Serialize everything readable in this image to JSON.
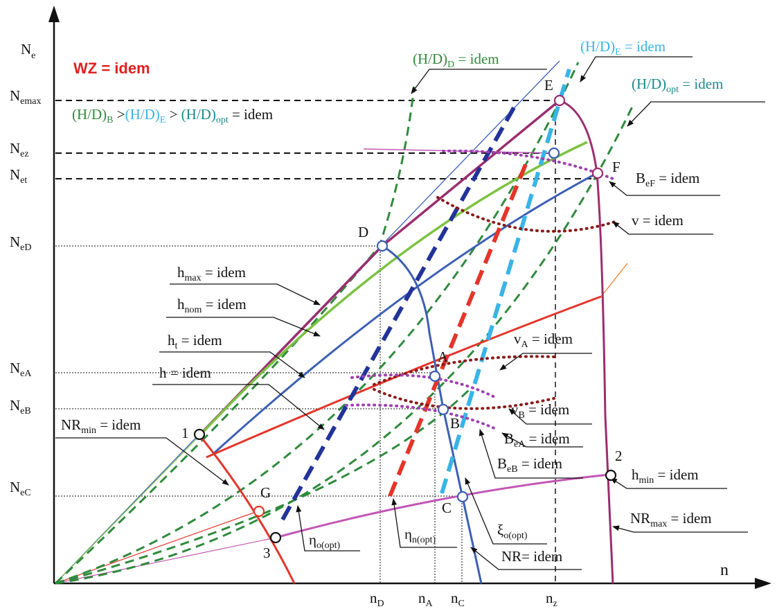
{
  "title": "WZ = idem",
  "axes": {
    "y_label_base": "N",
    "y_label_sub": "e",
    "x_label": "n"
  },
  "y_ticks": [
    {
      "base": "N",
      "sub": "emax"
    },
    {
      "base": "N",
      "sub": "ez"
    },
    {
      "base": "N",
      "sub": "et"
    },
    {
      "base": "N",
      "sub": "eD"
    },
    {
      "base": "N",
      "sub": "eA"
    },
    {
      "base": "N",
      "sub": "eB"
    },
    {
      "base": "N",
      "sub": "eC"
    }
  ],
  "x_ticks": [
    {
      "base": "n",
      "sub": "D"
    },
    {
      "base": "n",
      "sub": "A"
    },
    {
      "base": "n",
      "sub": "C"
    },
    {
      "base": "n",
      "sub": "z"
    }
  ],
  "points": [
    "A",
    "B",
    "C",
    "D",
    "E",
    "F",
    "G",
    "1",
    "2",
    "3"
  ],
  "ratio_text": {
    "b_base": "(H/D)",
    "b_sub": "B",
    "gt1": " >",
    "e_base": "(H/D)",
    "e_sub": "E",
    "gt2": " > ",
    "opt_base": "(H/D)",
    "opt_sub": "opt",
    "tail": " = idem"
  },
  "labels": {
    "hd_d": {
      "base": "(H/D)",
      "sub": "D",
      "tail": " = idem"
    },
    "hd_e": {
      "base": "(H/D)",
      "sub": "E",
      "tail": " = idem"
    },
    "hd_opt": {
      "base": "(H/D)",
      "sub": "opt",
      "tail": " = idem"
    },
    "beF": {
      "base": "B",
      "sub": "eF",
      "tail": " = idem"
    },
    "v": "v = idem",
    "hmax": {
      "base": "h",
      "sub": "max",
      "tail": " = idem"
    },
    "hnom": {
      "base": "h",
      "sub": "nom",
      "tail": " = idem"
    },
    "ht": {
      "base": "h",
      "sub": "t",
      "tail": " = idem"
    },
    "h": "h = idem",
    "vA": {
      "base": "v",
      "sub": "A",
      "tail": " = idem"
    },
    "vB": {
      "base": "v",
      "sub": "B",
      "tail": " = idem"
    },
    "beA": {
      "base": "B",
      "sub": "eA",
      "tail": " = idem"
    },
    "beB": {
      "base": "B",
      "sub": "eB",
      "tail": " = idem"
    },
    "nrmin": {
      "base": "NR",
      "sub": "min",
      "tail": " = idem"
    },
    "hmin": {
      "base": "h",
      "sub": "min",
      "tail": " = idem"
    },
    "nrmax": {
      "base": "NR",
      "sub": "max",
      "tail": " = idem"
    },
    "nr": "NR= idem",
    "eta_o": {
      "base": "η",
      "sub": "o(opt)"
    },
    "eta_n": {
      "base": "η",
      "sub": "n(opt)"
    },
    "xi_o": {
      "base": "ξ",
      "sub": "o(opt)"
    }
  },
  "colors": {
    "dark_purple": "#9b2d6e",
    "green": "#7cc242",
    "blue": "#3c5fb4",
    "red": "#e4352a",
    "magenta": "#c256b4",
    "dkgreen": "#2f8a3c",
    "navy": "#223399",
    "cyan": "#39b4e6",
    "dkred": "#8b1a1a",
    "teal": "#1a8a8a",
    "title_red": "#e02020",
    "orange": "#f08030"
  }
}
